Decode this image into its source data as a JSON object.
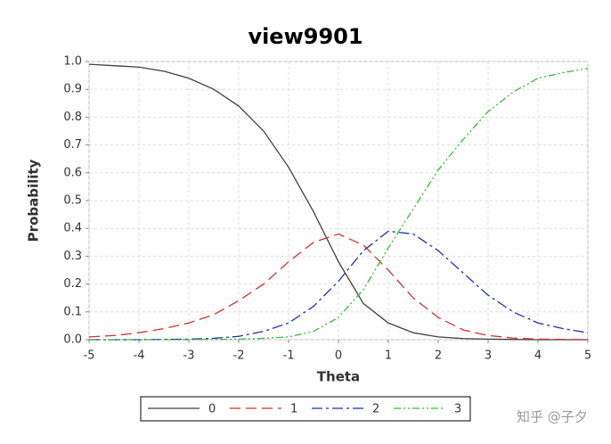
{
  "chart_data": {
    "type": "line",
    "title": "view9901",
    "x_label": "Theta",
    "y_label": "Probability",
    "x": [
      -5,
      -4.5,
      -4,
      -3.5,
      -3,
      -2.5,
      -2,
      -1.5,
      -1,
      -0.5,
      0,
      0.5,
      1,
      1.5,
      2,
      2.5,
      3,
      3.5,
      4,
      4.5,
      5
    ],
    "series": [
      {
        "name": "0",
        "color": "#404040",
        "dash": "none",
        "values": [
          0.99,
          0.985,
          0.98,
          0.965,
          0.94,
          0.9,
          0.84,
          0.75,
          0.62,
          0.46,
          0.28,
          0.13,
          0.06,
          0.025,
          0.01,
          0.004,
          0.002,
          0.001,
          0,
          0,
          0
        ]
      },
      {
        "name": "1",
        "color": "#d03030",
        "dash": "12 6",
        "values": [
          0.01,
          0.015,
          0.025,
          0.04,
          0.06,
          0.09,
          0.14,
          0.2,
          0.28,
          0.35,
          0.38,
          0.34,
          0.25,
          0.15,
          0.08,
          0.035,
          0.015,
          0.006,
          0.002,
          0.001,
          0
        ]
      },
      {
        "name": "2",
        "color": "#2030b0",
        "dash": "12 4 3 4",
        "values": [
          0,
          0,
          0,
          0.001,
          0.002,
          0.005,
          0.012,
          0.03,
          0.06,
          0.12,
          0.21,
          0.32,
          0.39,
          0.38,
          0.32,
          0.24,
          0.16,
          0.1,
          0.06,
          0.04,
          0.025
        ]
      },
      {
        "name": "3",
        "color": "#30c030",
        "dash": "8 3 2 3 2 3",
        "values": [
          0,
          0,
          0,
          0,
          0,
          0.001,
          0.002,
          0.005,
          0.01,
          0.03,
          0.08,
          0.18,
          0.33,
          0.47,
          0.61,
          0.72,
          0.82,
          0.89,
          0.94,
          0.96,
          0.975
        ]
      }
    ],
    "xlim": [
      -5,
      5
    ],
    "xticks": [
      -5,
      -4,
      -3,
      -2,
      -1,
      0,
      1,
      2,
      3,
      4,
      5
    ],
    "ylim": [
      0,
      1
    ],
    "yticks": [
      {
        "value": 0,
        "label": "0.0"
      },
      0.1,
      0.2,
      0.3,
      0.4,
      0.5,
      0.6,
      0.7,
      0.8,
      0.9,
      {
        "value": 1,
        "label": "1.0"
      }
    ],
    "grid": true,
    "legend": "bottom"
  },
  "watermark": "知乎 @子夕"
}
